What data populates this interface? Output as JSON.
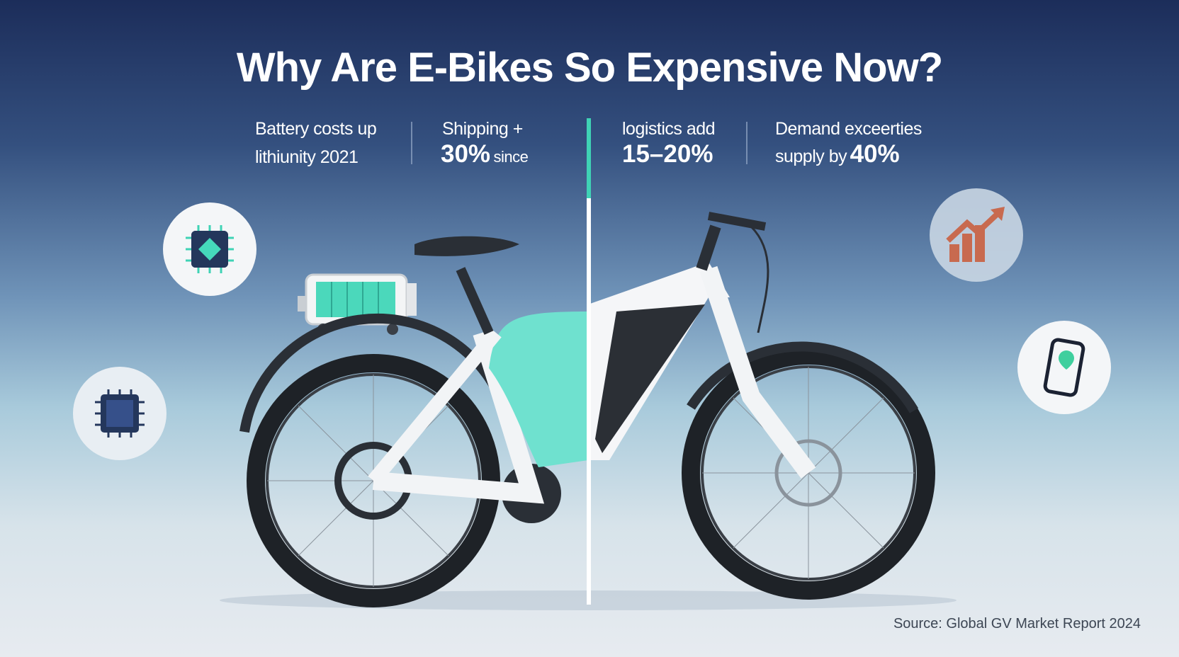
{
  "title": "Why Are E-Bikes So Expensive Now?",
  "stats": [
    {
      "line1": "Battery costs up",
      "line2": "lithiunity 2021"
    },
    {
      "line1": "Shipping +",
      "figure": "30%",
      "line2": "since"
    },
    {
      "line1": "logistics add",
      "figure": "15–20%"
    },
    {
      "line1": "Demand exceerties",
      "line2": "supply by",
      "figure": "40%"
    }
  ],
  "source": "Source: Global GV Market Report 2024"
}
